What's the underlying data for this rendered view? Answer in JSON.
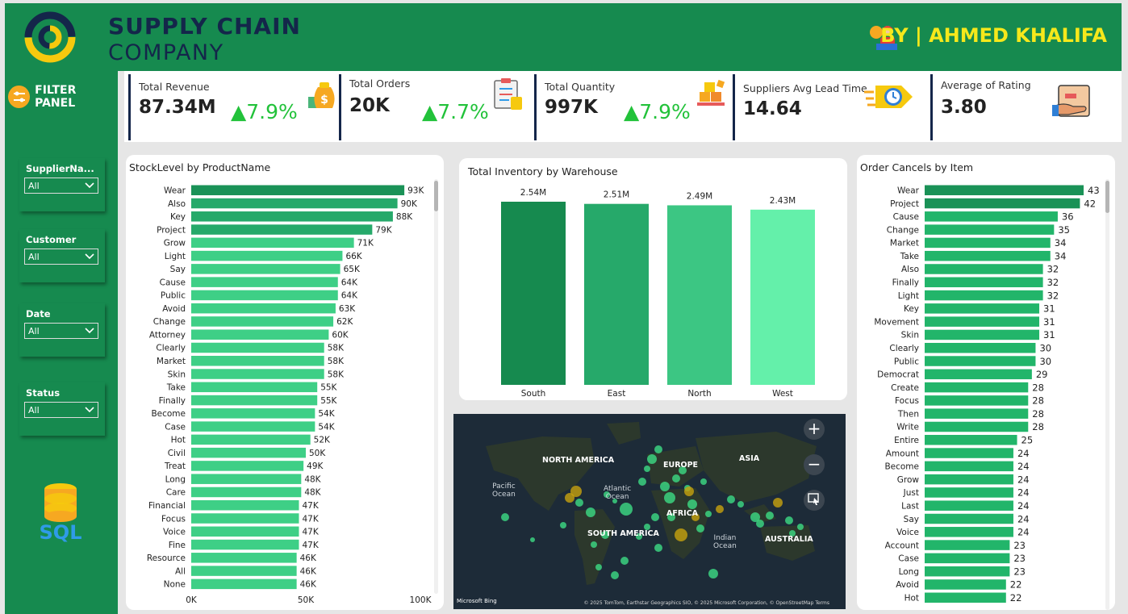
{
  "header": {
    "brand_line1": "SUPPLY CHAIN",
    "brand_line2": "COMPANY",
    "author": "BY | AHMED KHALIFA",
    "colors": {
      "header_bg": "#168a4f",
      "brand": "#14264a",
      "author": "#f6e81b",
      "accent": "#f6c90e"
    }
  },
  "sidebar": {
    "title": "FILTER PANEL",
    "slicers": [
      {
        "label": "SupplierNa...",
        "value": "All"
      },
      {
        "label": "Customer",
        "value": "All"
      },
      {
        "label": "Date",
        "value": "All"
      },
      {
        "label": "Status",
        "value": "All"
      }
    ],
    "sql_label": "SQL"
  },
  "kpis": [
    {
      "label": "Total Revenue",
      "value": "87.34M",
      "delta": "7.9%",
      "icon": "money-bag-icon"
    },
    {
      "label": "Total Orders",
      "value": "20K",
      "delta": "7.7%",
      "icon": "clipboard-icon"
    },
    {
      "label": "Total Quantity",
      "value": "997K",
      "delta": "7.9%",
      "icon": "boxes-icon"
    },
    {
      "label": "Suppliers Avg Lead Time",
      "value": "14.64",
      "delta": "",
      "icon": "fast-clock-icon"
    },
    {
      "label": "Average of Rating",
      "value": "3.80",
      "delta": "",
      "icon": "rating-hand-icon"
    }
  ],
  "stock_chart": {
    "title": "StockLevel by ProductName",
    "color": "#2ecc80",
    "x_ticks": [
      "0K",
      "50K",
      "100K"
    ],
    "chart_data": {
      "type": "bar",
      "orientation": "horizontal",
      "xlim": [
        0,
        100000
      ],
      "categories": [
        "Wear",
        "Also",
        "Key",
        "Project",
        "Grow",
        "Light",
        "Say",
        "Cause",
        "Public",
        "Avoid",
        "Change",
        "Attorney",
        "Clearly",
        "Market",
        "Skin",
        "Take",
        "Finally",
        "Become",
        "Case",
        "Hot",
        "Civil",
        "Treat",
        "Long",
        "Care",
        "Financial",
        "Focus",
        "Voice",
        "Fine",
        "Resource",
        "All",
        "None"
      ],
      "values": [
        93000,
        90000,
        88000,
        79000,
        71000,
        66000,
        65000,
        64000,
        64000,
        63000,
        62000,
        60000,
        58000,
        58000,
        58000,
        55000,
        55000,
        54000,
        54000,
        52000,
        50000,
        49000,
        48000,
        48000,
        47000,
        47000,
        47000,
        47000,
        46000,
        46000,
        46000
      ],
      "data_labels": [
        "93K",
        "90K",
        "88K",
        "79K",
        "71K",
        "66K",
        "65K",
        "64K",
        "64K",
        "63K",
        "62K",
        "60K",
        "58K",
        "58K",
        "58K",
        "55K",
        "55K",
        "54K",
        "54K",
        "52K",
        "50K",
        "49K",
        "48K",
        "48K",
        "47K",
        "47K",
        "47K",
        "47K",
        "46K",
        "46K",
        "46K"
      ]
    }
  },
  "warehouse_chart": {
    "title": "Total Inventory by Warehouse",
    "colors": [
      "#168a4f",
      "#26a96a",
      "#3cc683",
      "#64f0aa"
    ],
    "chart_data": {
      "type": "bar",
      "categories": [
        "South",
        "East",
        "North",
        "West"
      ],
      "values": [
        2540000,
        2510000,
        2490000,
        2430000
      ],
      "data_labels": [
        "2.54M",
        "2.51M",
        "2.49M",
        "2.43M"
      ]
    }
  },
  "cancel_chart": {
    "title": "Order Cancels by Item",
    "color": "#22b56a",
    "chart_data": {
      "type": "bar",
      "orientation": "horizontal",
      "categories": [
        "Wear",
        "Project",
        "Cause",
        "Change",
        "Market",
        "Take",
        "Also",
        "Finally",
        "Light",
        "Key",
        "Movement",
        "Skin",
        "Clearly",
        "Public",
        "Democrat",
        "Create",
        "Focus",
        "Then",
        "Write",
        "Entire",
        "Amount",
        "Become",
        "Grow",
        "Just",
        "Last",
        "Say",
        "Voice",
        "Account",
        "Case",
        "Long",
        "Avoid",
        "Hot"
      ],
      "values": [
        43,
        42,
        36,
        35,
        34,
        34,
        32,
        32,
        32,
        31,
        31,
        31,
        30,
        30,
        29,
        28,
        28,
        28,
        28,
        25,
        24,
        24,
        24,
        24,
        24,
        24,
        24,
        23,
        23,
        23,
        22,
        22
      ]
    }
  },
  "map": {
    "labels": {
      "na": "NORTH AMERICA",
      "eu": "EUROPE",
      "asia": "ASIA",
      "sa": "SOUTH AMERICA",
      "af": "AFRICA",
      "au": "AUSTRALIA"
    },
    "oceans": {
      "pacific": "Pacific\nOcean",
      "atlantic": "Atlantic\nOcean",
      "indian": "Indian\nOcean"
    },
    "zoom_in": "+",
    "zoom_out": "−",
    "bing": "Microsoft Bing",
    "attribution": "© 2025 TomTom, Earthstar Geographics SIO, © 2025 Microsoft Corporation, © OpenStreetMap  Terms"
  }
}
